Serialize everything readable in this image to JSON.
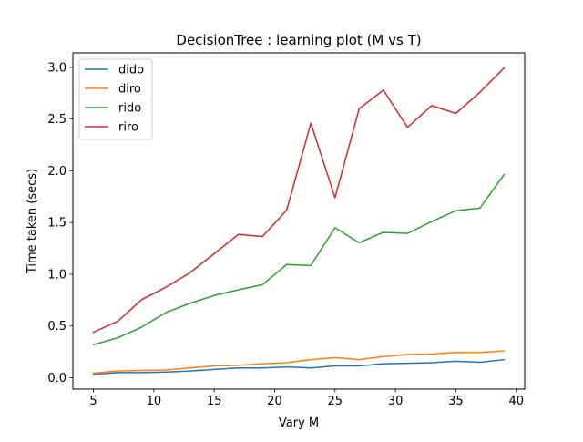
{
  "chart_data": {
    "type": "line",
    "title": "DecisionTree : learning plot (M vs T)",
    "xlabel": "Vary M",
    "ylabel": "Time taken (secs)",
    "xlim": [
      3.3,
      40.7
    ],
    "ylim": [
      -0.11,
      3.14
    ],
    "xticks": [
      5,
      10,
      15,
      20,
      25,
      30,
      35,
      40
    ],
    "yticks": [
      0.0,
      0.5,
      1.0,
      1.5,
      2.0,
      2.5,
      3.0
    ],
    "xtick_labels": [
      "5",
      "10",
      "15",
      "20",
      "25",
      "30",
      "35",
      "40"
    ],
    "ytick_labels": [
      "0.0",
      "0.5",
      "1.0",
      "1.5",
      "2.0",
      "2.5",
      "3.0"
    ],
    "grid": false,
    "legend_position": "top-left",
    "x": [
      5,
      7,
      9,
      11,
      13,
      15,
      17,
      19,
      21,
      23,
      25,
      27,
      29,
      31,
      33,
      35,
      37,
      39
    ],
    "series": [
      {
        "name": "dido",
        "color": "#1f77b4",
        "values": [
          0.03,
          0.05,
          0.05,
          0.055,
          0.065,
          0.08,
          0.095,
          0.095,
          0.105,
          0.095,
          0.115,
          0.115,
          0.135,
          0.14,
          0.145,
          0.16,
          0.15,
          0.175
        ]
      },
      {
        "name": "diro",
        "color": "#ff7f0e",
        "values": [
          0.045,
          0.065,
          0.07,
          0.075,
          0.095,
          0.115,
          0.12,
          0.135,
          0.145,
          0.175,
          0.195,
          0.175,
          0.205,
          0.225,
          0.23,
          0.245,
          0.245,
          0.26
        ]
      },
      {
        "name": "rido",
        "color": "#2ca02c",
        "values": [
          0.32,
          0.385,
          0.49,
          0.63,
          0.72,
          0.795,
          0.85,
          0.9,
          1.095,
          1.085,
          1.45,
          1.305,
          1.405,
          1.395,
          1.51,
          1.615,
          1.64,
          1.965
        ]
      },
      {
        "name": "riro",
        "color": "#d62728",
        "values": [
          0.44,
          0.545,
          0.755,
          0.875,
          1.015,
          1.2,
          1.385,
          1.365,
          1.62,
          2.46,
          1.74,
          2.6,
          2.78,
          2.42,
          2.63,
          2.555,
          2.76,
          2.995
        ]
      }
    ]
  }
}
